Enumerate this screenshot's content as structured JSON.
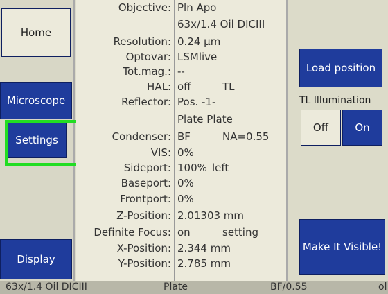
{
  "nav": {
    "home": "Home",
    "microscope": "Microscope",
    "settings": "Settings",
    "display": "Display"
  },
  "status": {
    "rows": [
      {
        "label": "Objective:",
        "value": "Pln Apo"
      },
      {
        "value": "63x/1.4 Oil DICIII"
      },
      {
        "label": "Resolution:",
        "value": "0.24 µm"
      },
      {
        "label": "Optovar:",
        "value": "LSMlive"
      },
      {
        "label": "Tot.mag.:",
        "value": "--"
      },
      {
        "label": "HAL:",
        "value": "off",
        "extra": "TL"
      },
      {
        "label": "Reflector:",
        "value": "Pos. -1-"
      },
      {
        "value": "Plate Plate"
      },
      {
        "label": "Condenser:",
        "value": "BF",
        "extra": "NA=0.55"
      },
      {
        "label": "VIS:",
        "value": "0%"
      },
      {
        "label": "Sideport:",
        "value": "100%",
        "extra": "left"
      },
      {
        "label": "Baseport:",
        "value": "0%"
      },
      {
        "label": "Frontport:",
        "value": "0%"
      },
      {
        "label": "Z-Position:",
        "value": "2.01303 mm"
      },
      {
        "label": "Definite Focus:",
        "value": "on",
        "extra": "setting"
      },
      {
        "label": "X-Position:",
        "value": "2.344 mm"
      },
      {
        "label": "Y-Position:",
        "value": "2.785 mm"
      }
    ]
  },
  "actions": {
    "load": "Load position",
    "illumination": "TL Illumination",
    "off": "Off",
    "on": "On",
    "visible": "Make It Visible!"
  },
  "footer": [
    "63x/1.4 Oil DICIII",
    "Plate",
    "BF/0.55",
    "ol"
  ]
}
